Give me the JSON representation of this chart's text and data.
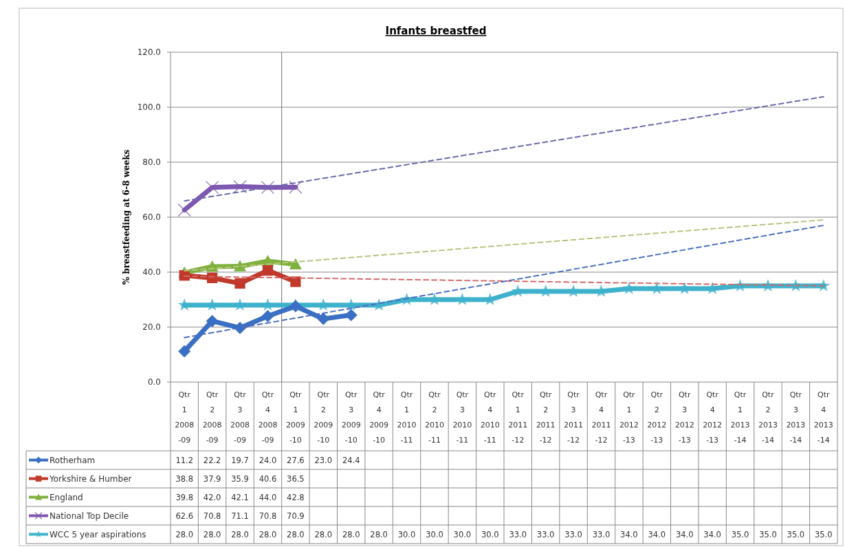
{
  "chart_data": {
    "type": "line",
    "title": "Infants breastfed",
    "ylabel": "% breastfeeding at 6-8 weeks",
    "categories": [
      "Qtr 1 2008-09",
      "Qtr 2 2008-09",
      "Qtr 3 2008-09",
      "Qtr 4 2008-09",
      "Qtr 1 2009-10",
      "Qtr 2 2009-10",
      "Qtr 3 2009-10",
      "Qtr 4 2009-10",
      "Qtr 1 2010-11",
      "Qtr 2 2010-11",
      "Qtr 3 2010-11",
      "Qtr 4 2010-11",
      "Qtr 1 2011-12",
      "Qtr 2 2011-12",
      "Qtr 3 2011-12",
      "Qtr 4 2011-12",
      "Qtr 1 2012-13",
      "Qtr 2 2012-13",
      "Qtr 3 2012-13",
      "Qtr 4 2012-13",
      "Qtr 1 2013-14",
      "Qtr 2 2013-14",
      "Qtr 3 2013-14",
      "Qtr 4 2013-14"
    ],
    "series": [
      {
        "name": "WCC 5 year aspirations",
        "color": "#3eb2cc",
        "marker": "star",
        "values": [
          28.0,
          28.0,
          28.0,
          28.0,
          28.0,
          28.0,
          28.0,
          28.0,
          30.0,
          30.0,
          30.0,
          30.0,
          33.0,
          33.0,
          33.0,
          33.0,
          34.0,
          34.0,
          34.0,
          34.0,
          35.0,
          35.0,
          35.0,
          35.0
        ],
        "value_labels": [
          "28.0",
          "28.0",
          "28.0",
          "28.0",
          "28.0",
          "28.0",
          "28.0",
          "28.0",
          "30.0",
          "30.0",
          "30.0",
          "30.0",
          "33.0",
          "33.0",
          "33.0",
          "33.0",
          "34.0",
          "34.0",
          "34.0",
          "34.0",
          "35.0",
          "35.0",
          "35.0",
          "35.0"
        ]
      },
      {
        "name": "National Top Decile",
        "color": "#7e57b0",
        "marker": "cross",
        "values": [
          62.6,
          70.8,
          71.1,
          70.8,
          70.9,
          null,
          null,
          null,
          null,
          null,
          null,
          null,
          null,
          null,
          null,
          null,
          null,
          null,
          null,
          null,
          null,
          null,
          null,
          null
        ],
        "value_labels": [
          "62.6",
          "70.8",
          "71.1",
          "70.8",
          "70.9",
          null,
          null,
          null,
          null,
          null,
          null,
          null,
          null,
          null,
          null,
          null,
          null,
          null,
          null,
          null,
          null,
          null,
          null,
          null
        ]
      },
      {
        "name": "England",
        "color": "#7fb13e",
        "marker": "triangle",
        "values": [
          39.8,
          42.0,
          42.1,
          44.0,
          42.8,
          null,
          null,
          null,
          null,
          null,
          null,
          null,
          null,
          null,
          null,
          null,
          null,
          null,
          null,
          null,
          null,
          null,
          null,
          null
        ],
        "value_labels": [
          "39.8",
          "42.0",
          "42.1",
          "44.0",
          "42.8",
          null,
          null,
          null,
          null,
          null,
          null,
          null,
          null,
          null,
          null,
          null,
          null,
          null,
          null,
          null,
          null,
          null,
          null,
          null
        ]
      },
      {
        "name": "Yorkshire & Humber",
        "color": "#c0392b",
        "marker": "square",
        "values": [
          38.8,
          37.9,
          35.9,
          40.6,
          36.5,
          null,
          null,
          null,
          null,
          null,
          null,
          null,
          null,
          null,
          null,
          null,
          null,
          null,
          null,
          null,
          null,
          null,
          null,
          null
        ],
        "value_labels": [
          "38.8",
          "37.9",
          "35.9",
          "40.6",
          "36.5",
          null,
          null,
          null,
          null,
          null,
          null,
          null,
          null,
          null,
          null,
          null,
          null,
          null,
          null,
          null,
          null,
          null,
          null,
          null
        ]
      },
      {
        "name": "Rotherham",
        "color": "#3a6fc4",
        "marker": "diamond",
        "values": [
          11.2,
          22.2,
          19.7,
          24.0,
          27.6,
          23.0,
          24.4,
          null,
          null,
          null,
          null,
          null,
          null,
          null,
          null,
          null,
          null,
          null,
          null,
          null,
          null,
          null,
          null,
          null
        ],
        "value_labels": [
          "11.2",
          "22.2",
          "19.7",
          "24.0",
          "27.6",
          "23.0",
          "24.4",
          null,
          null,
          null,
          null,
          null,
          null,
          null,
          null,
          null,
          null,
          null,
          null,
          null,
          null,
          null,
          null,
          null
        ]
      },
      {
        "type": "line",
        "line_style": "dashed",
        "marker": "none",
        "color": "#6a6aae",
        "x": [
          "Qtr 1 2008-09",
          "Qtr 4 2013-14"
        ],
        "values": [
          65.9,
          103.8
        ]
      },
      {
        "type": "line",
        "line_style": "dashed",
        "marker": "none",
        "color": "#b8c47e",
        "x": [
          "Qtr 1 2008-09",
          "Qtr 4 2013-14"
        ],
        "values": [
          40.5,
          59.0
        ]
      },
      {
        "type": "line",
        "line_style": "dashed",
        "marker": "none",
        "color": "#d46a6a",
        "x": [
          "Qtr 1 2008-09",
          "Qtr 4 2013-14"
        ],
        "values": [
          38.5,
          35.0
        ]
      },
      {
        "type": "line",
        "line_style": "dashed",
        "marker": "none",
        "color": "#4a6fc0",
        "x": [
          "Qtr 1 2008-09",
          "Qtr 4 2013-14"
        ],
        "values": [
          16.2,
          57.0
        ]
      }
    ],
    "ylim": [
      0,
      120
    ],
    "yticks": [
      {
        "value": 0,
        "label": "0.0"
      },
      {
        "value": 20,
        "label": "20.0"
      },
      {
        "value": 40,
        "label": "40.0"
      },
      {
        "value": 60,
        "label": "60.0"
      },
      {
        "value": 80,
        "label": "80.0"
      },
      {
        "value": 100,
        "label": "100.0"
      },
      {
        "value": 120,
        "label": "120.0"
      }
    ],
    "grid": "y",
    "legend": "bottom",
    "ref_lines": [
      {
        "axis": "x",
        "value": "Qtr 1 2009-10",
        "color": "#707070"
      }
    ]
  }
}
